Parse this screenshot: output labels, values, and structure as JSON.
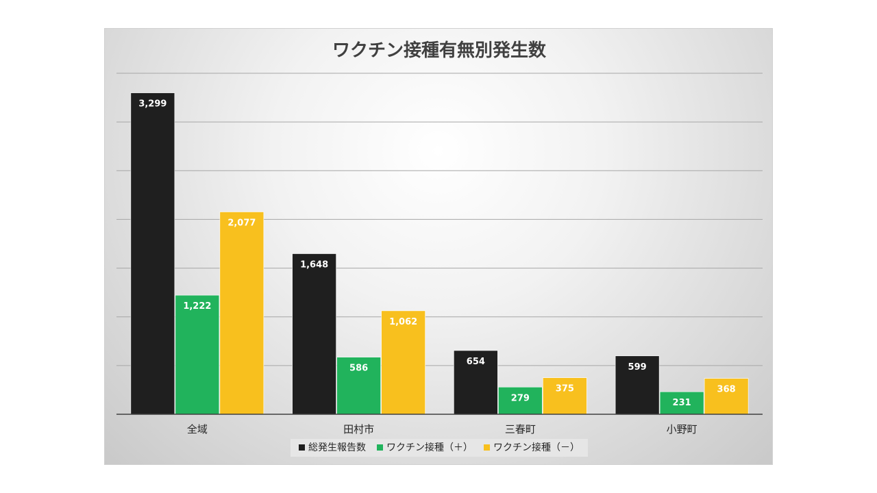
{
  "chart_data": {
    "type": "bar",
    "title": "ワクチン接種有無別発生数",
    "categories": [
      "全域",
      "田村市",
      "三春町",
      "小野町"
    ],
    "series": [
      {
        "name": "総発生報告数",
        "color": "#1f1f1f",
        "values": [
          3299,
          1648,
          654,
          599
        ],
        "labels": [
          "3,299",
          "1,648",
          "654",
          "599"
        ]
      },
      {
        "name": "ワクチン接種（＋）",
        "color": "#21b35c",
        "values": [
          1222,
          586,
          279,
          231
        ],
        "labels": [
          "1,222",
          "586",
          "279",
          "231"
        ]
      },
      {
        "name": "ワクチン接種（－）",
        "color": "#f8c01e",
        "values": [
          2077,
          1062,
          375,
          368
        ],
        "labels": [
          "2,077",
          "1,062",
          "375",
          "368"
        ]
      }
    ],
    "ylim": [
      0,
      3500
    ],
    "grid": true,
    "legend": "bottom"
  }
}
